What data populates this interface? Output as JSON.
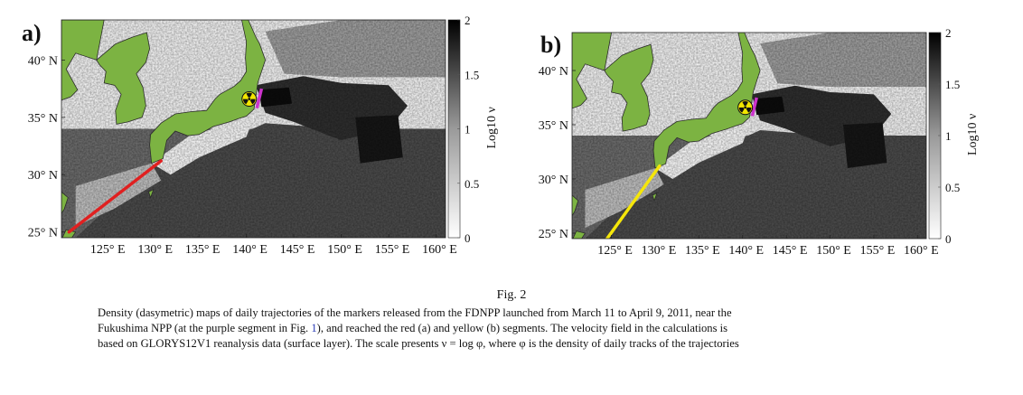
{
  "chart_data": [
    {
      "type": "heatmap",
      "panel_label": "a)",
      "x_tick_labels": [
        "125° E",
        "130° E",
        "135° E",
        "140° E",
        "145° E",
        "150° E",
        "155° E",
        "160° E"
      ],
      "x_ticks": [
        125,
        130,
        135,
        140,
        145,
        150,
        155,
        160
      ],
      "y_tick_labels": [
        "25° N",
        "30° N",
        "35° N",
        "40° N"
      ],
      "y_ticks": [
        25,
        30,
        35,
        40
      ],
      "xlim": [
        120.5,
        161
      ],
      "ylim": [
        24.5,
        43.5
      ],
      "colorbar": {
        "label": "Log10 ν",
        "range": [
          0,
          2
        ],
        "ticks": [
          0,
          0.5,
          1,
          1.5,
          2
        ],
        "tick_labels": [
          "0",
          "0.5",
          "1",
          "1.5",
          "2"
        ]
      },
      "segment": {
        "color": "#e02020",
        "lon": [
          121.3,
          131.0
        ],
        "lat": [
          25.0,
          31.2
        ]
      },
      "source_segment": {
        "color": "#cc33cc",
        "lon": [
          141.1,
          141.6
        ],
        "lat": [
          35.8,
          37.5
        ]
      },
      "colors": {
        "land": "#7cb342",
        "segment": "#e02020"
      }
    },
    {
      "type": "heatmap",
      "panel_label": "b)",
      "x_tick_labels": [
        "125° E",
        "130° E",
        "135° E",
        "140° E",
        "145° E",
        "150° E",
        "155° E",
        "160° E"
      ],
      "x_ticks": [
        125,
        130,
        135,
        140,
        145,
        150,
        155,
        160
      ],
      "y_tick_labels": [
        "25° N",
        "30° N",
        "35° N",
        "40° N"
      ],
      "y_ticks": [
        25,
        30,
        35,
        40
      ],
      "xlim": [
        120.5,
        161
      ],
      "ylim": [
        24.5,
        43.5
      ],
      "colorbar": {
        "label": "Log10 ν",
        "range": [
          0,
          2
        ],
        "ticks": [
          0,
          0.5,
          1,
          1.5,
          2
        ],
        "tick_labels": [
          "0",
          "0.5",
          "1",
          "1.5",
          "2"
        ]
      },
      "segment": {
        "color": "#f5e60a",
        "lon": [
          124.5,
          130.5
        ],
        "lat": [
          24.5,
          31.2
        ]
      },
      "source_segment": {
        "color": "#cc33cc",
        "lon": [
          141.1,
          141.6
        ],
        "lat": [
          35.8,
          37.5
        ]
      },
      "colors": {
        "land": "#7cb342",
        "segment": "#f5e60a"
      }
    }
  ],
  "caption": {
    "fig_label": "Fig. 2",
    "line1": "Density (dasymetric) maps of daily trajectories of the markers released from the FDNPP launched from March 11 to April 9, 2011, near the",
    "line2_a": "Fukushima NPP (at the purple segment in Fig. ",
    "line2_ref": "1",
    "line2_b": "), and reached the red (a) and yellow (b) segments. The velocity field in the calculations is",
    "line3": "based on GLORYS12V1 reanalysis data (surface layer). The scale presents ν = log φ, where φ is the density of daily tracks of the trajectories"
  }
}
